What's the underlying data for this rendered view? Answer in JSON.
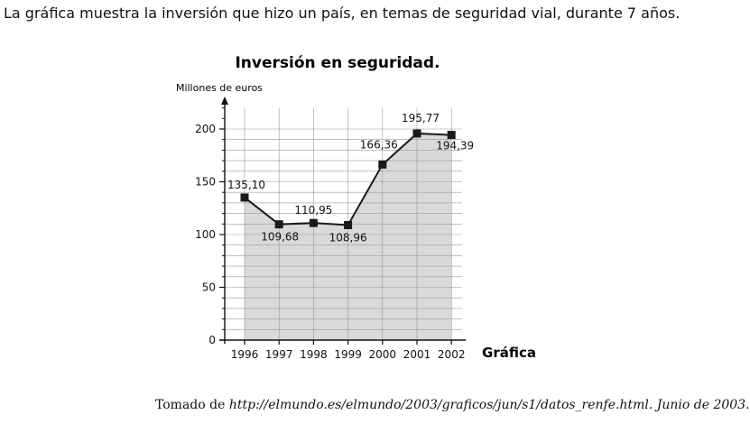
{
  "intro": "La gráfica muestra la inversión que hizo un país, en temas de seguridad vial, durante 7 años.",
  "caption": {
    "prefix": "Tomado de ",
    "source": "http://elmundo.es/elmundo/2003/graficos/jun/s1/datos_renfe.html. Junio de 2003."
  },
  "colors": {
    "fill": "#d9d9d9",
    "line": "#1a1a1a",
    "marker": "#1a1a1a",
    "grid": "#9a9a9a"
  },
  "chart_data": {
    "type": "area",
    "title": "Inversión en seguridad.",
    "ylabel": "Millones de euros",
    "xlabel": "",
    "figure_label": "Gráfica",
    "categories": [
      "1996",
      "1997",
      "1998",
      "1999",
      "2000",
      "2001",
      "2002"
    ],
    "values": [
      135.1,
      109.68,
      110.95,
      108.96,
      166.36,
      195.77,
      194.39
    ],
    "value_labels": [
      "135,10",
      "109,68",
      "110,95",
      "108,96",
      "166,36",
      "195,77",
      "194,39"
    ],
    "yticks": [
      0,
      50,
      100,
      150,
      200
    ],
    "ylim": [
      0,
      230
    ],
    "grid": true,
    "marker": "square"
  }
}
